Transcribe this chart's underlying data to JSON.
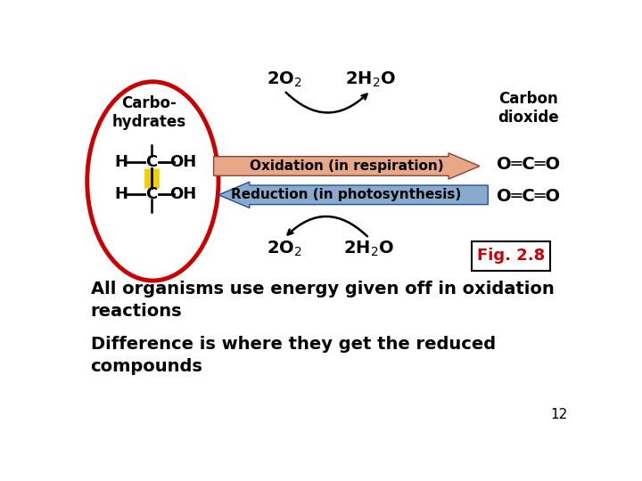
{
  "bg_color": "#ffffff",
  "fig_label": "Fig. 2.8",
  "text_line1": "All organisms use energy given off in oxidation\nreactions",
  "text_line2": "Difference is where they get the reduced\ncompounds",
  "page_num": "12",
  "oxidation_label": "Oxidation (in respiration)",
  "reduction_label": "Reduction (in photosynthesis)",
  "carbo_label": "Carbo-\nhydrates",
  "carbon_dioxide_label": "Carbon\ndioxide",
  "oxidation_arrow_color_left": "#f0c8b0",
  "oxidation_arrow_color_right": "#c05030",
  "reduction_arrow_color_left": "#2060a0",
  "reduction_arrow_color_right": "#a0c0e0",
  "ellipse_color": "#cc0000",
  "yellow_bond_color": "#f0d000",
  "fig_label_color": "#cc0000",
  "caption_color": "#000000"
}
